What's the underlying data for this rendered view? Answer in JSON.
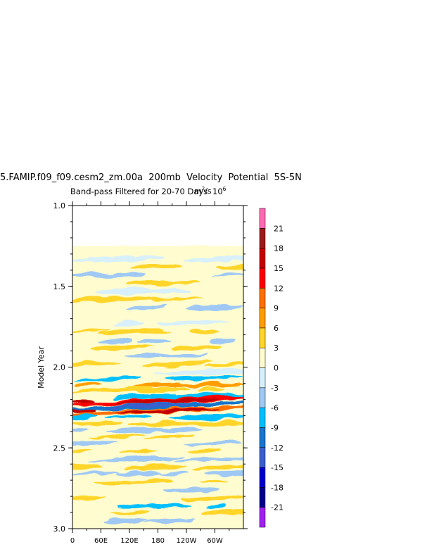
{
  "chart_data": {
    "type": "heatmap",
    "title": "5.FAMIP.f09_f09.cesm2_zm.00a  200mb  Velocity  Potential  5S-5N",
    "subtitle": "Band-pass Filtered for 20-70 Days",
    "units_label": "10",
    "units_exponent": "6",
    "units_overlay": "m",
    "units_overlay_exponent": "2",
    "units_overlay_tail": "/s",
    "ylabel": "Model Year",
    "ylim": [
      3.0,
      1.0
    ],
    "yticks": [
      "1.0",
      "1.5",
      "2.0",
      "2.5",
      "3.0"
    ],
    "xlim": [
      0,
      360
    ],
    "xticks": [
      "0",
      "60E",
      "120E",
      "180",
      "120W",
      "60W"
    ],
    "data_start_year": 1.25,
    "colorbar": {
      "levels": [
        "-21",
        "-18",
        "-15",
        "-12",
        "-9",
        "-6",
        "-3",
        "0",
        "3",
        "6",
        "9",
        "12",
        "15",
        "18",
        "21"
      ],
      "colors": [
        "#a020f0",
        "#00008b",
        "#0000cd",
        "#3a5fcd",
        "#1874cd",
        "#00bfff",
        "#9fc9f4",
        "#d7f0fb",
        "#fffccf",
        "#ffd52a",
        "#ff9d00",
        "#ff6f00",
        "#ff0000",
        "#c50000",
        "#9b1b1b",
        "#ff69b4"
      ]
    },
    "bands": [
      {
        "y": 1.27,
        "c": 8
      },
      {
        "y": 1.33,
        "c": 7
      },
      {
        "y": 1.38,
        "c": 9
      },
      {
        "y": 1.43,
        "c": 6
      },
      {
        "y": 1.48,
        "c": 9
      },
      {
        "y": 1.53,
        "c": 7
      },
      {
        "y": 1.58,
        "c": 9
      },
      {
        "y": 1.63,
        "c": 6
      },
      {
        "y": 1.68,
        "c": 8
      },
      {
        "y": 1.73,
        "c": 7
      },
      {
        "y": 1.78,
        "c": 9
      },
      {
        "y": 1.84,
        "c": 6
      },
      {
        "y": 1.88,
        "c": 9
      },
      {
        "y": 1.93,
        "c": 6
      },
      {
        "y": 1.98,
        "c": 9
      },
      {
        "y": 2.03,
        "c": 7
      },
      {
        "y": 2.07,
        "c": 5
      },
      {
        "y": 2.11,
        "c": 10
      },
      {
        "y": 2.14,
        "c": 9
      },
      {
        "y": 2.18,
        "c": 5
      },
      {
        "y": 2.21,
        "c": 12
      },
      {
        "y": 2.24,
        "c": 4
      },
      {
        "y": 2.27,
        "c": 11
      },
      {
        "y": 2.31,
        "c": 5
      },
      {
        "y": 2.35,
        "c": 9
      },
      {
        "y": 2.39,
        "c": 6
      },
      {
        "y": 2.43,
        "c": 9
      },
      {
        "y": 2.47,
        "c": 6
      },
      {
        "y": 2.52,
        "c": 9
      },
      {
        "y": 2.57,
        "c": 6
      },
      {
        "y": 2.62,
        "c": 9
      },
      {
        "y": 2.66,
        "c": 6
      },
      {
        "y": 2.71,
        "c": 9
      },
      {
        "y": 2.76,
        "c": 6
      },
      {
        "y": 2.81,
        "c": 9
      },
      {
        "y": 2.86,
        "c": 5
      },
      {
        "y": 2.9,
        "c": 9
      },
      {
        "y": 2.95,
        "c": 6
      }
    ]
  }
}
